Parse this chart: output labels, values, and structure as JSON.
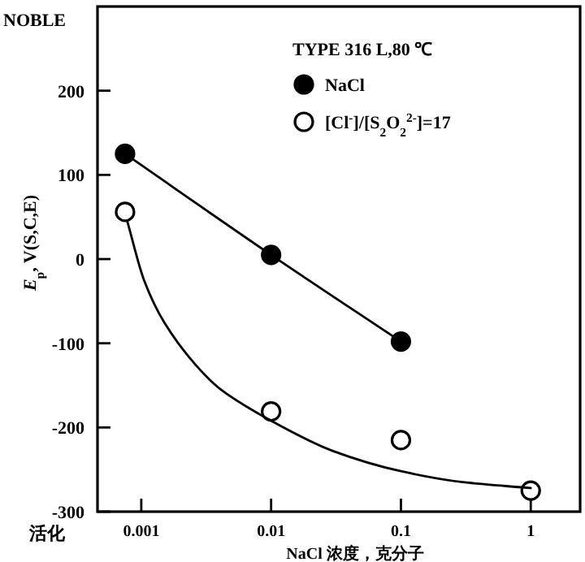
{
  "chart_data": {
    "type": "line",
    "xlabel": "NaCl 浓度，克分子",
    "ylabel": "*E*$_{p}$, V(S,C,E)",
    "legend_title": "TYPE 316 L,80 ℃",
    "annotations": [
      "NOBLE",
      "活化"
    ],
    "log": "x",
    "xlim": [
      0.00046,
      2.4
    ],
    "ylim": [
      -300,
      300
    ],
    "xticks": [
      0.001,
      0.01,
      0.1,
      1
    ],
    "yticks": [
      -300,
      -200,
      -100,
      0,
      100,
      200
    ],
    "legend": "top right",
    "marker": "circle",
    "grid": false,
    "series": [
      {
        "name": "NaCl",
        "color": "#000000",
        "x": [
          0.00075,
          0.01,
          0.1
        ],
        "values": [
          125,
          5,
          -98
        ]
      },
      {
        "name": "[Cl$^{-}$]/[S$_{2}$O$_{2}$$^{2-}$]=17",
        "type": "scatter",
        "color": "#000000",
        "x": [
          0.00075,
          0.01,
          0.1,
          1
        ],
        "values": [
          56,
          -181,
          -215,
          -275
        ]
      },
      {
        "marker": "none",
        "color": "#000000",
        "x": [
          0.00078,
          0.00105,
          0.0015,
          0.0026,
          0.0041,
          0.01,
          0.03,
          0.1,
          0.3,
          1
        ],
        "values": [
          45,
          -25,
          -75,
          -125,
          -155,
          -192,
          -228,
          -252,
          -265,
          -272
        ]
      }
    ]
  }
}
